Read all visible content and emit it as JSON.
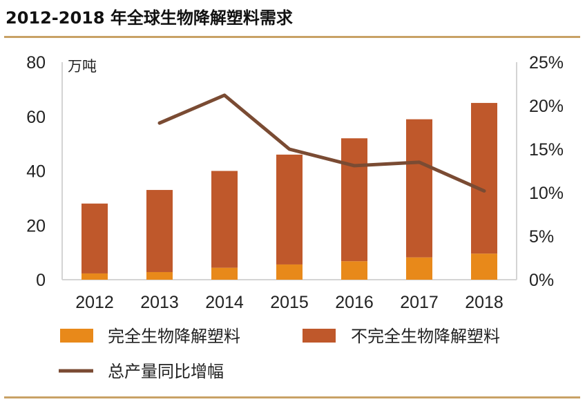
{
  "title": "2012-2018 年全球生物降解塑料需求",
  "chart_data": {
    "type": "bar",
    "stacked": true,
    "categories": [
      "2012",
      "2013",
      "2014",
      "2015",
      "2016",
      "2017",
      "2018"
    ],
    "y_unit": "万吨",
    "ylim": [
      0,
      80
    ],
    "y_ticks": [
      "0",
      "20",
      "40",
      "60",
      "80"
    ],
    "y2lim": [
      0,
      25
    ],
    "y2_ticks": [
      "0%",
      "5%",
      "10%",
      "15%",
      "20%",
      "25%"
    ],
    "grid": false,
    "legend_position": "bottom",
    "series": [
      {
        "name": "完全生物降解塑料",
        "type": "bar",
        "axis": "left",
        "color": "#e8891a",
        "values": [
          2.3,
          2.8,
          4.4,
          5.6,
          6.8,
          8.2,
          9.6
        ]
      },
      {
        "name": "不完全生物降解塑料",
        "type": "bar",
        "axis": "left",
        "color": "#bf582b",
        "values": [
          25.7,
          30.2,
          35.6,
          40.4,
          45.2,
          50.8,
          55.4
        ]
      },
      {
        "name": "总产量同比增幅",
        "type": "line",
        "axis": "right",
        "color": "#7a4b33",
        "values": [
          null,
          18.0,
          21.2,
          15.0,
          13.1,
          13.5,
          10.2
        ]
      }
    ]
  }
}
